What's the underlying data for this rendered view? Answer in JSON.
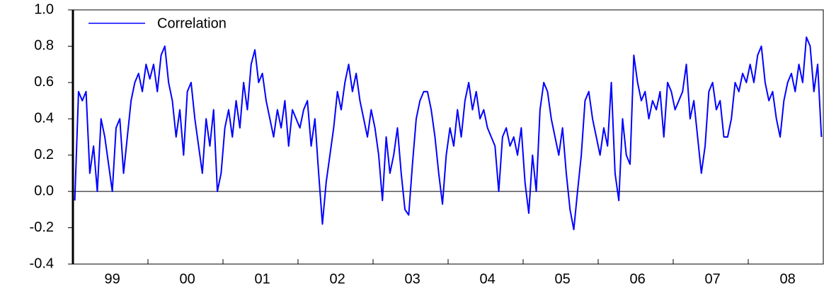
{
  "chart_data": {
    "type": "line",
    "categories": [
      null,
      null,
      null,
      null,
      null,
      null,
      null,
      null,
      null,
      null,
      "99",
      null,
      null,
      null,
      null,
      null,
      null,
      null,
      null,
      null,
      null,
      null,
      null,
      null,
      null,
      null,
      null,
      null,
      null,
      null,
      "00",
      null,
      null,
      null,
      null,
      null,
      null,
      null,
      null,
      null,
      null,
      null,
      null,
      null,
      null,
      null,
      null,
      null,
      null,
      null,
      "01",
      null,
      null,
      null,
      null,
      null,
      null,
      null,
      null,
      null,
      null,
      null,
      null,
      null,
      null,
      null,
      null,
      null,
      null,
      null,
      "02",
      null,
      null,
      null,
      null,
      null,
      null,
      null,
      null,
      null,
      null,
      null,
      null,
      null,
      null,
      null,
      null,
      null,
      null,
      null,
      "03",
      null,
      null,
      null,
      null,
      null,
      null,
      null,
      null,
      null,
      null,
      null,
      null,
      null,
      null,
      null,
      null,
      null,
      null,
      null,
      "04",
      null,
      null,
      null,
      null,
      null,
      null,
      null,
      null,
      null,
      null,
      null,
      null,
      null,
      null,
      null,
      null,
      null,
      null,
      null,
      "05",
      null,
      null,
      null,
      null,
      null,
      null,
      null,
      null,
      null,
      null,
      null,
      null,
      null,
      null,
      null,
      null,
      null,
      null,
      null,
      "06",
      null,
      null,
      null,
      null,
      null,
      null,
      null,
      null,
      null,
      null,
      null,
      null,
      null,
      null,
      null,
      null,
      null,
      null,
      null,
      "07",
      null,
      null,
      null,
      null,
      null,
      null,
      null,
      null,
      null,
      null,
      null,
      null,
      null,
      null,
      null,
      null,
      null,
      null,
      null,
      "08",
      null,
      null,
      null,
      null,
      null,
      null,
      null,
      null,
      null
    ],
    "series": [
      {
        "name": "Correlation",
        "color": "#0000ff",
        "values": [
          -0.05,
          0.55,
          0.5,
          0.55,
          0.1,
          0.25,
          0.0,
          0.4,
          0.3,
          0.15,
          0.0,
          0.35,
          0.4,
          0.1,
          0.3,
          0.5,
          0.6,
          0.65,
          0.55,
          0.7,
          0.62,
          0.7,
          0.55,
          0.75,
          0.8,
          0.6,
          0.5,
          0.3,
          0.45,
          0.2,
          0.55,
          0.6,
          0.4,
          0.25,
          0.1,
          0.4,
          0.25,
          0.45,
          0.0,
          0.1,
          0.35,
          0.45,
          0.3,
          0.5,
          0.35,
          0.6,
          0.45,
          0.7,
          0.78,
          0.6,
          0.65,
          0.5,
          0.4,
          0.3,
          0.45,
          0.35,
          0.5,
          0.25,
          0.45,
          0.4,
          0.35,
          0.45,
          0.5,
          0.25,
          0.4,
          0.1,
          -0.18,
          0.05,
          0.2,
          0.35,
          0.55,
          0.45,
          0.6,
          0.7,
          0.55,
          0.65,
          0.5,
          0.4,
          0.3,
          0.45,
          0.35,
          0.2,
          -0.05,
          0.3,
          0.1,
          0.2,
          0.35,
          0.1,
          -0.1,
          -0.13,
          0.15,
          0.4,
          0.5,
          0.55,
          0.55,
          0.45,
          0.3,
          0.1,
          -0.07,
          0.2,
          0.35,
          0.25,
          0.45,
          0.3,
          0.5,
          0.6,
          0.45,
          0.55,
          0.4,
          0.45,
          0.35,
          0.3,
          0.25,
          0.0,
          0.3,
          0.35,
          0.25,
          0.3,
          0.2,
          0.35,
          0.05,
          -0.12,
          0.2,
          0.0,
          0.45,
          0.6,
          0.55,
          0.4,
          0.3,
          0.2,
          0.35,
          0.1,
          -0.1,
          -0.21,
          0.0,
          0.2,
          0.5,
          0.55,
          0.4,
          0.3,
          0.2,
          0.35,
          0.25,
          0.6,
          0.1,
          -0.05,
          0.4,
          0.2,
          0.15,
          0.75,
          0.6,
          0.5,
          0.55,
          0.4,
          0.5,
          0.45,
          0.55,
          0.3,
          0.6,
          0.55,
          0.45,
          0.5,
          0.55,
          0.7,
          0.4,
          0.5,
          0.3,
          0.1,
          0.25,
          0.55,
          0.6,
          0.45,
          0.5,
          0.3,
          0.3,
          0.4,
          0.6,
          0.55,
          0.65,
          0.6,
          0.7,
          0.6,
          0.75,
          0.8,
          0.6,
          0.5,
          0.55,
          0.4,
          0.3,
          0.5,
          0.6,
          0.65,
          0.55,
          0.7,
          0.6,
          0.85,
          0.8,
          0.55,
          0.7,
          0.3
        ]
      }
    ],
    "ylim": [
      -0.4,
      1.0
    ],
    "yticks": [
      -0.4,
      -0.2,
      {
        "value": 0,
        "label": "0.0"
      },
      0.2,
      0.4,
      0.6,
      0.8,
      {
        "value": 1,
        "label": "1.0"
      }
    ],
    "zero_line": true,
    "legend": "top-left"
  }
}
